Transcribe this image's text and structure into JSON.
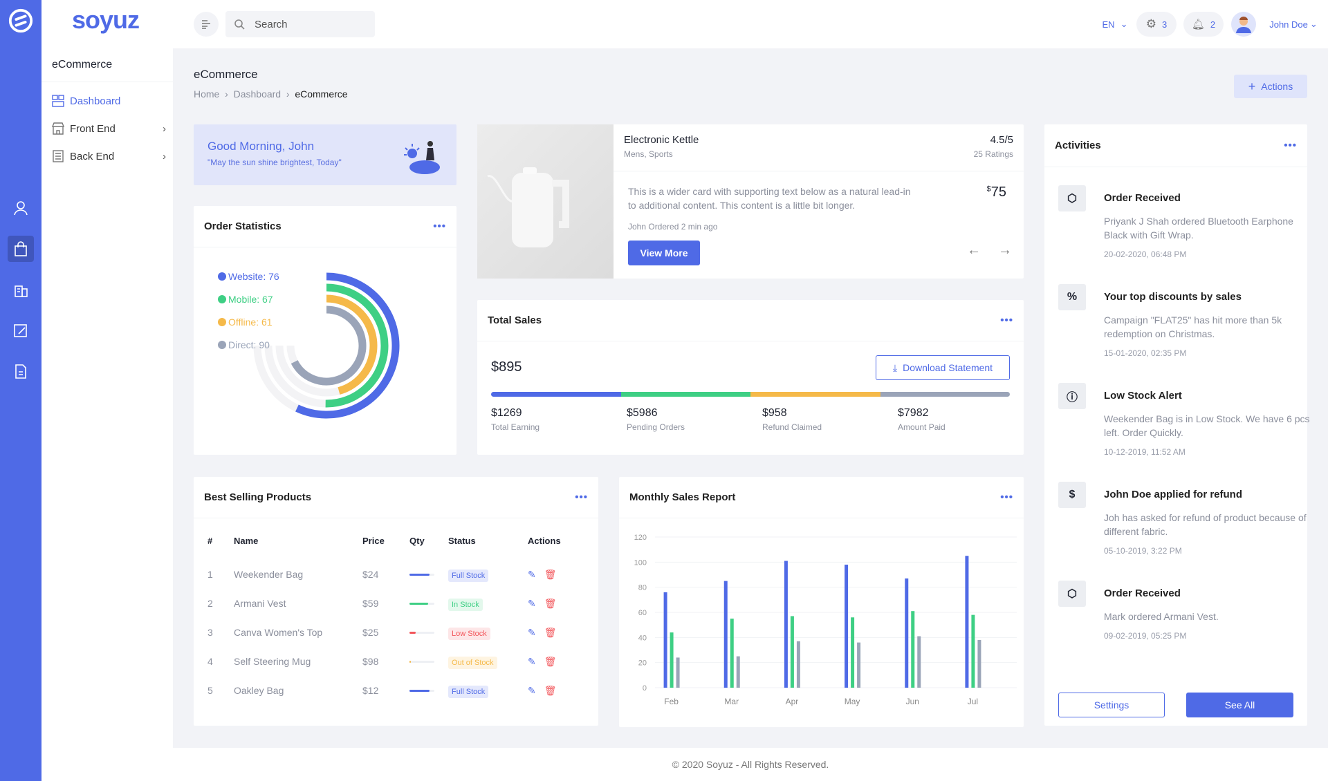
{
  "colors": {
    "brand": "#4f6ae6",
    "green": "#3ecf84",
    "orange": "#f5b949",
    "gray": "#9aa4b8",
    "red": "#f2555a"
  },
  "brand": {
    "logo": "soyuz"
  },
  "sidebar": {
    "section": "eCommerce",
    "items": [
      {
        "label": "Dashboard",
        "icon": "dashboard-icon"
      },
      {
        "label": "Front End",
        "icon": "store-icon"
      },
      {
        "label": "Back End",
        "icon": "document-icon"
      }
    ]
  },
  "rail": {
    "icons": [
      "user-icon",
      "shopping-bag-icon",
      "building-icon",
      "edit-icon",
      "file-icon"
    ]
  },
  "topbar": {
    "search_placeholder": "Search",
    "language": "EN",
    "settings_count": "3",
    "notifications_count": "2",
    "user": "John Doe"
  },
  "page": {
    "title": "eCommerce",
    "breadcrumb": [
      "Home",
      "Dashboard",
      "eCommerce"
    ],
    "actions_label": "Actions"
  },
  "greeting": {
    "title": "Good Morning, John",
    "quote": "\"May the sun shine brightest, Today\""
  },
  "order_stats": {
    "title": "Order Statistics",
    "chart_data": {
      "type": "radialBar",
      "series": [
        {
          "name": "Website",
          "value": 76
        },
        {
          "name": "Mobile",
          "value": 67
        },
        {
          "name": "Offline",
          "value": 61
        },
        {
          "name": "Direct",
          "value": 90
        }
      ],
      "legend": [
        "Website: 76",
        "Mobile: 67",
        "Offline: 61",
        "Direct: 90"
      ]
    }
  },
  "product": {
    "name": "Electronic Kettle",
    "category": "Mens, Sports",
    "rating": "4.5/5",
    "ratings_count": "25 Ratings",
    "description": "This is a wider card with supporting text below as a natural lead-in to additional content. This content is a little bit longer.",
    "currency": "$",
    "price": "75",
    "ordered": "John Ordered 2 min ago",
    "button": "View More"
  },
  "total_sales": {
    "title": "Total Sales",
    "amount": "$895",
    "download": "Download Statement",
    "stats": [
      {
        "value": "$1269",
        "label": "Total Earning"
      },
      {
        "value": "$5986",
        "label": "Pending Orders"
      },
      {
        "value": "$958",
        "label": "Refund Claimed"
      },
      {
        "value": "$7982",
        "label": "Amount Paid"
      }
    ]
  },
  "best_selling": {
    "title": "Best Selling Products",
    "headers": [
      "#",
      "Name",
      "Price",
      "Qty",
      "Status",
      "Actions"
    ],
    "rows": [
      {
        "n": "1",
        "name": "Weekender Bag",
        "price": "$24",
        "qty": 0.8,
        "status": "Full Stock",
        "kind": "full"
      },
      {
        "n": "2",
        "name": "Armani Vest",
        "price": "$59",
        "qty": 0.75,
        "status": "In Stock",
        "kind": "in"
      },
      {
        "n": "3",
        "name": "Canva Women's Top",
        "price": "$25",
        "qty": 0.25,
        "status": "Low Stock",
        "kind": "low"
      },
      {
        "n": "4",
        "name": "Self Steering Mug",
        "price": "$98",
        "qty": 0.05,
        "status": "Out of Stock",
        "kind": "out"
      },
      {
        "n": "5",
        "name": "Oakley Bag",
        "price": "$12",
        "qty": 0.8,
        "status": "Full Stock",
        "kind": "full"
      }
    ]
  },
  "monthly": {
    "title": "Monthly Sales Report",
    "chart_data": {
      "type": "bar",
      "categories": [
        "Feb",
        "Mar",
        "Apr",
        "May",
        "Jun",
        "Jul"
      ],
      "ylim": [
        0,
        120
      ],
      "yticks": [
        0,
        20,
        40,
        60,
        80,
        100,
        120
      ],
      "grid": true,
      "series": [
        {
          "values": [
            76,
            85,
            101,
            98,
            87,
            105
          ],
          "color": "#4f6ae6"
        },
        {
          "values": [
            44,
            55,
            57,
            56,
            61,
            58
          ],
          "color": "#3ecf84"
        },
        {
          "values": [
            24,
            25,
            37,
            36,
            41,
            38
          ],
          "color": "#9aa4b8"
        }
      ]
    }
  },
  "activities": {
    "title": "Activities",
    "items": [
      {
        "icon": "box-icon",
        "title": "Order Received",
        "desc": "Priyank J Shah ordered Bluetooth Earphone Black with Gift Wrap.",
        "time": "20-02-2020, 06:48 PM"
      },
      {
        "icon": "percent-icon",
        "title": "Your top discounts by sales",
        "desc": "Campaign \"FLAT25\" has hit more than 5k redemption on Christmas.",
        "time": "15-01-2020, 02:35 PM"
      },
      {
        "icon": "alert-icon",
        "title": "Low Stock Alert",
        "desc": "Weekender Bag is in Low Stock. We have 6 pcs left. Order Quickly.",
        "time": "10-12-2019, 11:52 AM"
      },
      {
        "icon": "dollar-icon",
        "title": "John Doe applied for refund",
        "desc": "Joh has asked for refund of product because of different fabric.",
        "time": "05-10-2019, 3:22 PM"
      },
      {
        "icon": "box-icon",
        "title": "Order Received",
        "desc": "Mark ordered Armani Vest.",
        "time": "09-02-2019, 05:25 PM"
      }
    ],
    "settings": "Settings",
    "see_all": "See All"
  },
  "footer": "© 2020 Soyuz - All Rights Reserved."
}
